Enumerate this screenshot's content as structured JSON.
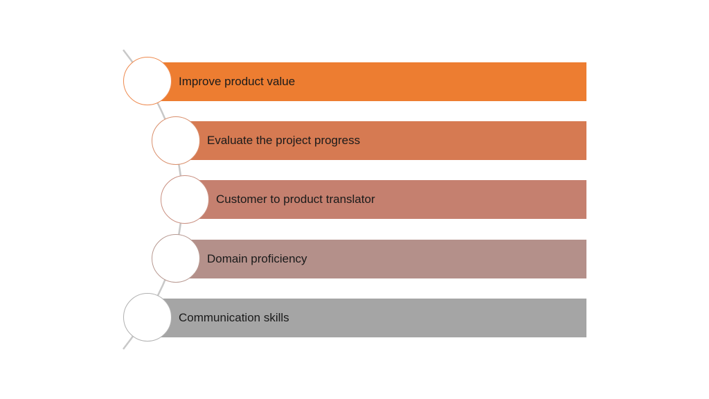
{
  "diagram": {
    "type": "vertical-bullet-list-arc",
    "arc_color": "#c8c8c8",
    "items": [
      {
        "label": "Improve product value",
        "color": "#ed7d31"
      },
      {
        "label": "Evaluate the project progress",
        "color": "#d67a52"
      },
      {
        "label": "Customer to product translator",
        "color": "#c5806f"
      },
      {
        "label": "Domain proficiency",
        "color": "#b4908a"
      },
      {
        "label": "Communication skills",
        "color": "#a5a5a5"
      }
    ]
  }
}
